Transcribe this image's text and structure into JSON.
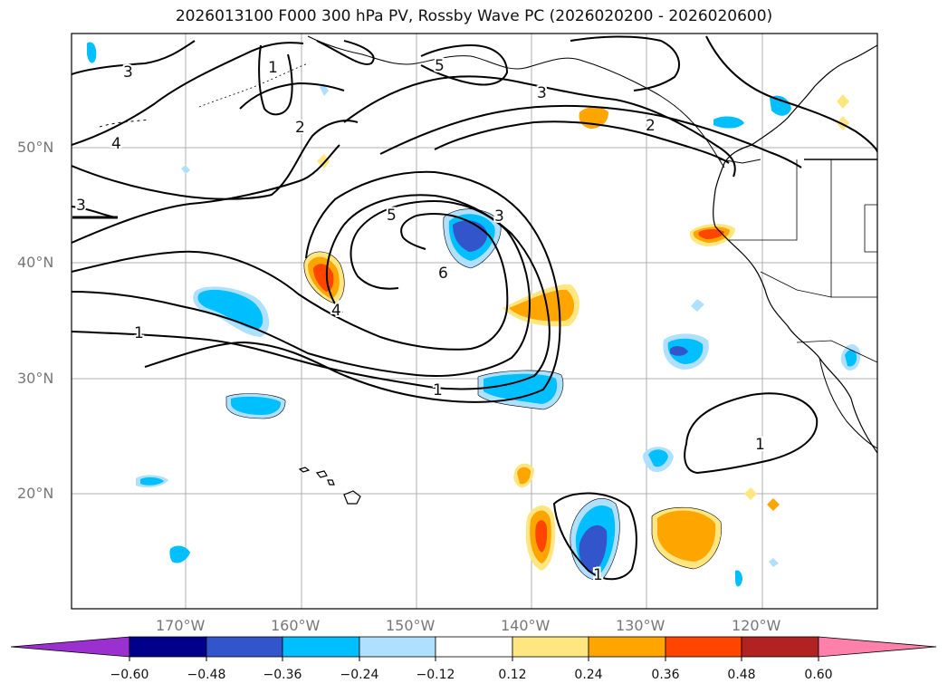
{
  "title": "2026013100 F000 300 hPa PV, Rossby Wave PC (2026020200 - 2026020600)",
  "map": {
    "lat_labels": [
      "50°N",
      "40°N",
      "30°N",
      "20°N"
    ],
    "lon_labels": [
      "170°W",
      "160°W",
      "150°W",
      "140°W",
      "130°W",
      "120°W"
    ],
    "contour_labels": [
      "3",
      "4",
      "3",
      "1",
      "2",
      "1",
      "5",
      "3",
      "2",
      "3",
      "5",
      "6",
      "4",
      "1",
      "1",
      "1"
    ]
  },
  "colorbar": {
    "ticks": [
      "−0.60",
      "−0.48",
      "−0.36",
      "−0.24",
      "−0.12",
      "0.12",
      "0.24",
      "0.36",
      "0.48",
      "0.60"
    ],
    "colors": [
      "#9b30d0",
      "#00008b",
      "#3355cc",
      "#00bfff",
      "#b0e0ff",
      "#ffffff",
      "#ffe680",
      "#ffa500",
      "#ff4500",
      "#b22222",
      "#ff80aa"
    ]
  }
}
